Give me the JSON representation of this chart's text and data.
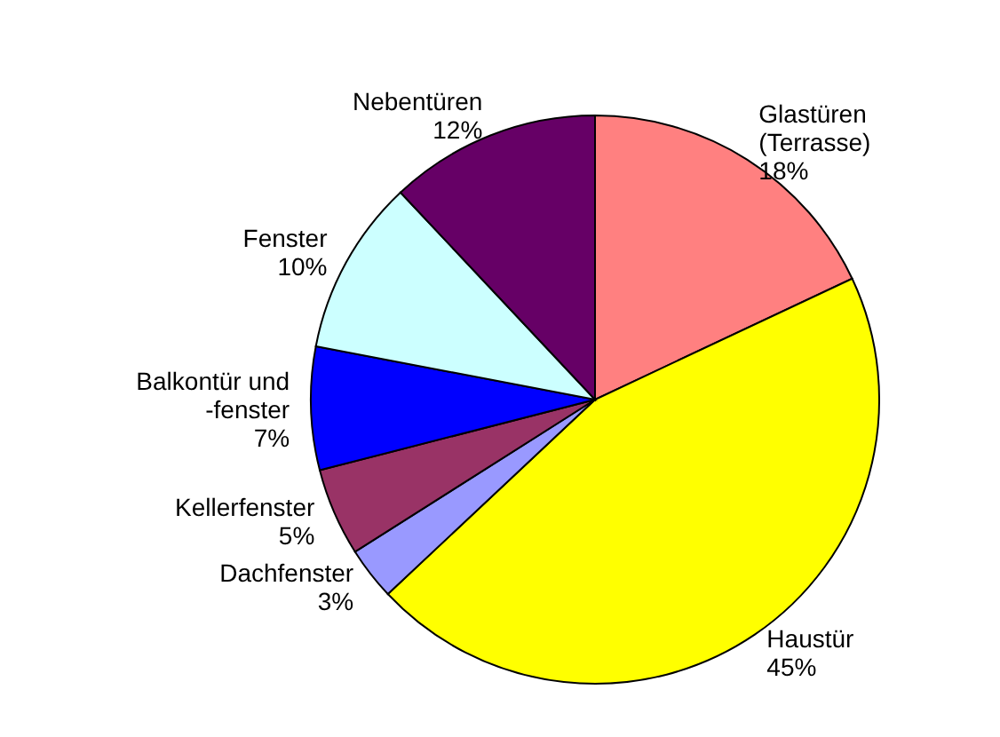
{
  "chart_data": {
    "type": "pie",
    "categories": [
      "Glastüren (Terrasse)",
      "Haustür",
      "Dachfenster",
      "Kellerfenster",
      "Balkontür und -fenster",
      "Fenster",
      "Nebentüren"
    ],
    "values": [
      18,
      45,
      3,
      5,
      7,
      10,
      12
    ],
    "value_labels": [
      "18%",
      "45%",
      "3%",
      "5%",
      "7%",
      "10%",
      "12%"
    ],
    "colors": [
      "#ff8080",
      "#ffff00",
      "#9999ff",
      "#993366",
      "#0000ff",
      "#ccffff",
      "#660066"
    ],
    "legend": false
  }
}
